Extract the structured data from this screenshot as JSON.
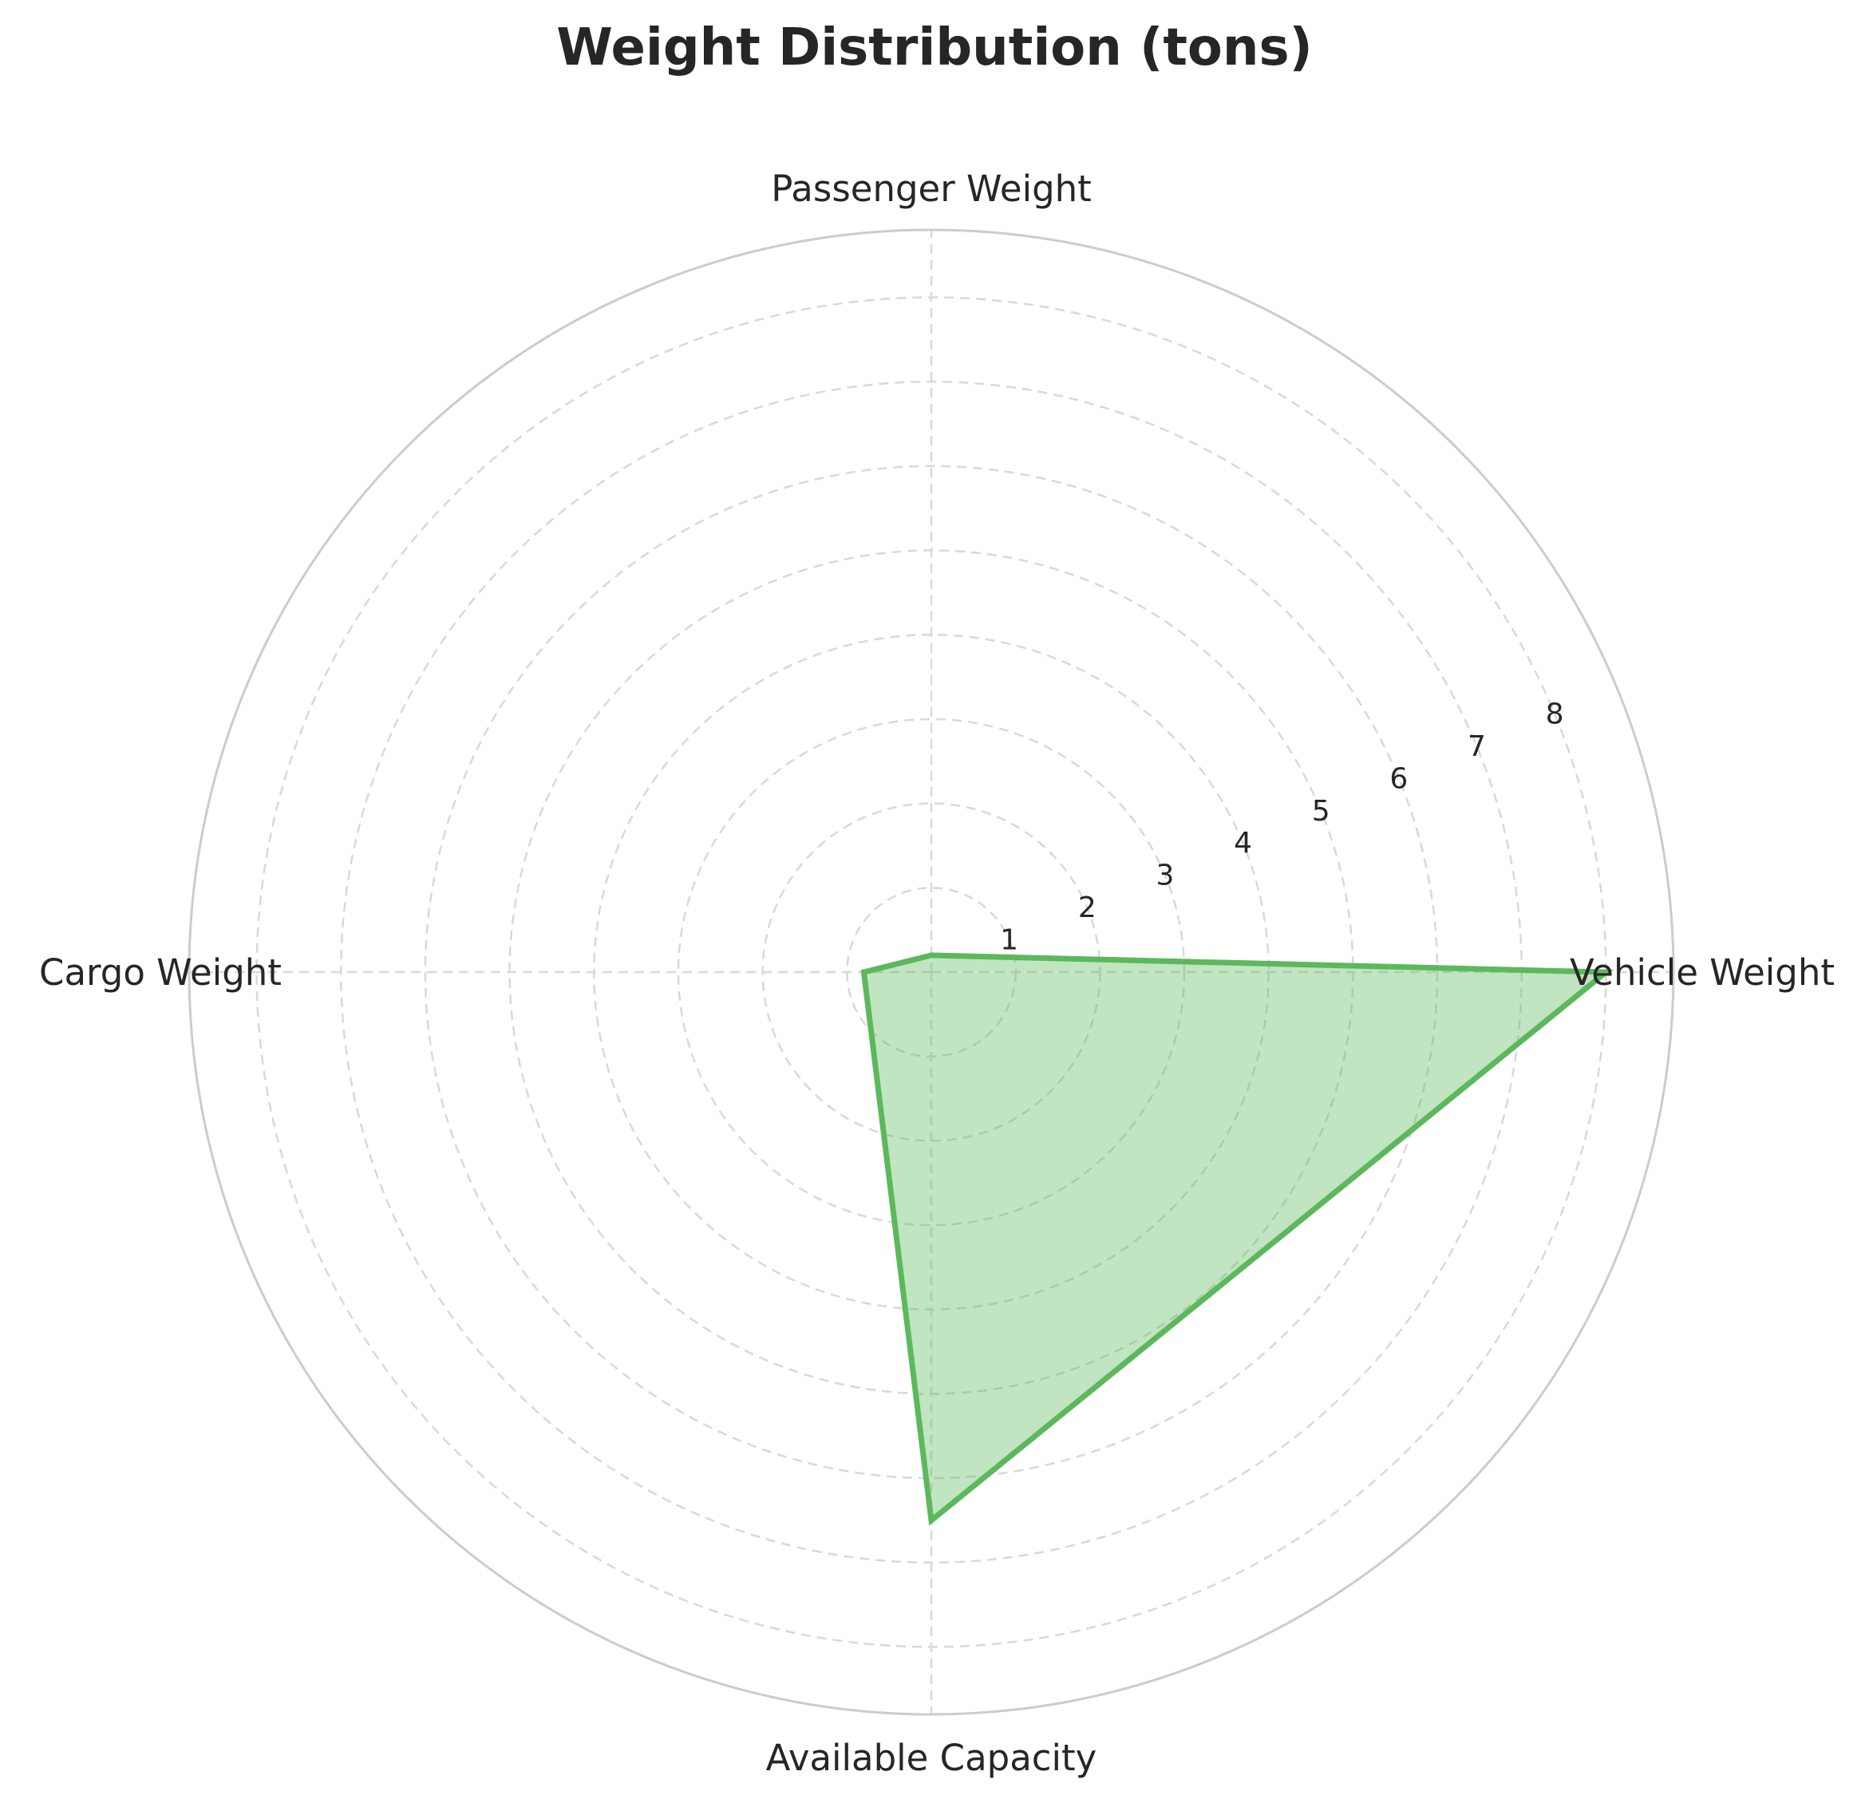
{
  "chart_data": {
    "type": "radar",
    "title": "Weight Distribution (tons)",
    "categories": [
      "Vehicle Weight",
      "Passenger Weight",
      "Cargo Weight",
      "Available Capacity"
    ],
    "series": [
      {
        "values": [
          8.0,
          0.2,
          0.8,
          6.5
        ]
      }
    ],
    "rlim": [
      0,
      8.8
    ],
    "rticks": [
      "1",
      "2",
      "3",
      "4",
      "5",
      "6",
      "7",
      "8"
    ],
    "grid": true,
    "colors": {
      "line": "#5cb85c",
      "fill": "#5cb85c",
      "grid": "#d9d9d9",
      "spine": "#cccccc",
      "text": "#262626"
    }
  }
}
